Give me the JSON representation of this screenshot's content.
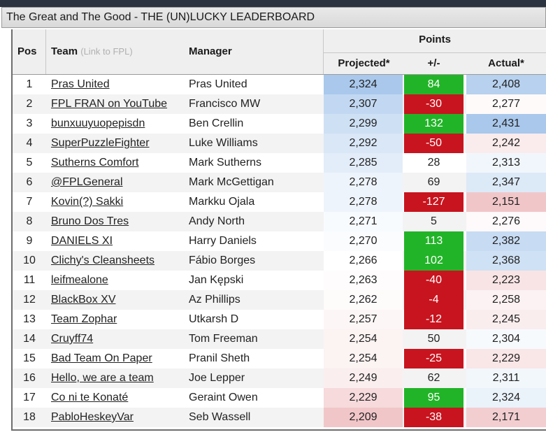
{
  "window": {
    "title": "The Great and The Good - THE (UN)LUCKY LEADERBOARD"
  },
  "columns": {
    "pos": "Pos",
    "team": "Team",
    "team_note": "(Link to FPL)",
    "manager": "Manager",
    "points_group": "Points",
    "projected": "Projected*",
    "plus_minus": "+/-",
    "actual": "Actual*"
  },
  "colors": {
    "positive": "#22b428",
    "negative": "#c8141e",
    "projected_high": "#a9c8ec",
    "actual_low": "#f1c6c9",
    "actual_high": "#a9c8ec"
  },
  "rows": [
    {
      "pos": "1",
      "team": "Pras United",
      "manager": "Pras United",
      "projected": "2,324",
      "diff": "84",
      "actual": "2,408"
    },
    {
      "pos": "2",
      "team": "FPL FRAN on YouTube",
      "manager": "Francisco MW",
      "projected": "2,307",
      "diff": "-30",
      "actual": "2,277"
    },
    {
      "pos": "3",
      "team": "bunxuuyuopepisdn",
      "manager": "Ben Crellin",
      "projected": "2,299",
      "diff": "132",
      "actual": "2,431"
    },
    {
      "pos": "4",
      "team": "SuperPuzzleFighter",
      "manager": "Luke Williams",
      "projected": "2,292",
      "diff": "-50",
      "actual": "2,242"
    },
    {
      "pos": "5",
      "team": "Sutherns Comfort",
      "manager": "Mark Sutherns",
      "projected": "2,285",
      "diff": "28",
      "actual": "2,313"
    },
    {
      "pos": "6",
      "team": "@FPLGeneral",
      "manager": "Mark McGettigan",
      "projected": "2,278",
      "diff": "69",
      "actual": "2,347"
    },
    {
      "pos": "7",
      "team": "Kovin(?) Sakki",
      "manager": "Markku Ojala",
      "projected": "2,278",
      "diff": "-127",
      "actual": "2,151"
    },
    {
      "pos": "8",
      "team": "Bruno Dos Tres",
      "manager": "Andy North",
      "projected": "2,271",
      "diff": "5",
      "actual": "2,276"
    },
    {
      "pos": "9",
      "team": "DANIELS XI",
      "manager": "Harry Daniels",
      "projected": "2,270",
      "diff": "113",
      "actual": "2,382"
    },
    {
      "pos": "10",
      "team": "Clichy's Cleansheets",
      "manager": "Fábio Borges",
      "projected": "2,266",
      "diff": "102",
      "actual": "2,368"
    },
    {
      "pos": "11",
      "team": "leifmealone",
      "manager": "Jan Kępski",
      "projected": "2,263",
      "diff": "-40",
      "actual": "2,223"
    },
    {
      "pos": "12",
      "team": "BlackBox XV",
      "manager": "Az Phillips",
      "projected": "2,262",
      "diff": "-4",
      "actual": "2,258"
    },
    {
      "pos": "13",
      "team": "Team Zophar",
      "manager": "Utkarsh D",
      "projected": "2,257",
      "diff": "-12",
      "actual": "2,245"
    },
    {
      "pos": "14",
      "team": "Cruyff74",
      "manager": "Tom Freeman",
      "projected": "2,254",
      "diff": "50",
      "actual": "2,304"
    },
    {
      "pos": "15",
      "team": "Bad Team On Paper",
      "manager": "Pranil Sheth",
      "projected": "2,254",
      "diff": "-25",
      "actual": "2,229"
    },
    {
      "pos": "16",
      "team": "Hello, we are a team",
      "manager": "Joe Lepper",
      "projected": "2,249",
      "diff": "62",
      "actual": "2,311"
    },
    {
      "pos": "17",
      "team": "Co ni te Konaté",
      "manager": "Geraint Owen",
      "projected": "2,229",
      "diff": "95",
      "actual": "2,324"
    },
    {
      "pos": "18",
      "team": "PabloHeskeyVar",
      "manager": "Seb Wassell",
      "projected": "2,209",
      "diff": "-38",
      "actual": "2,171"
    }
  ]
}
